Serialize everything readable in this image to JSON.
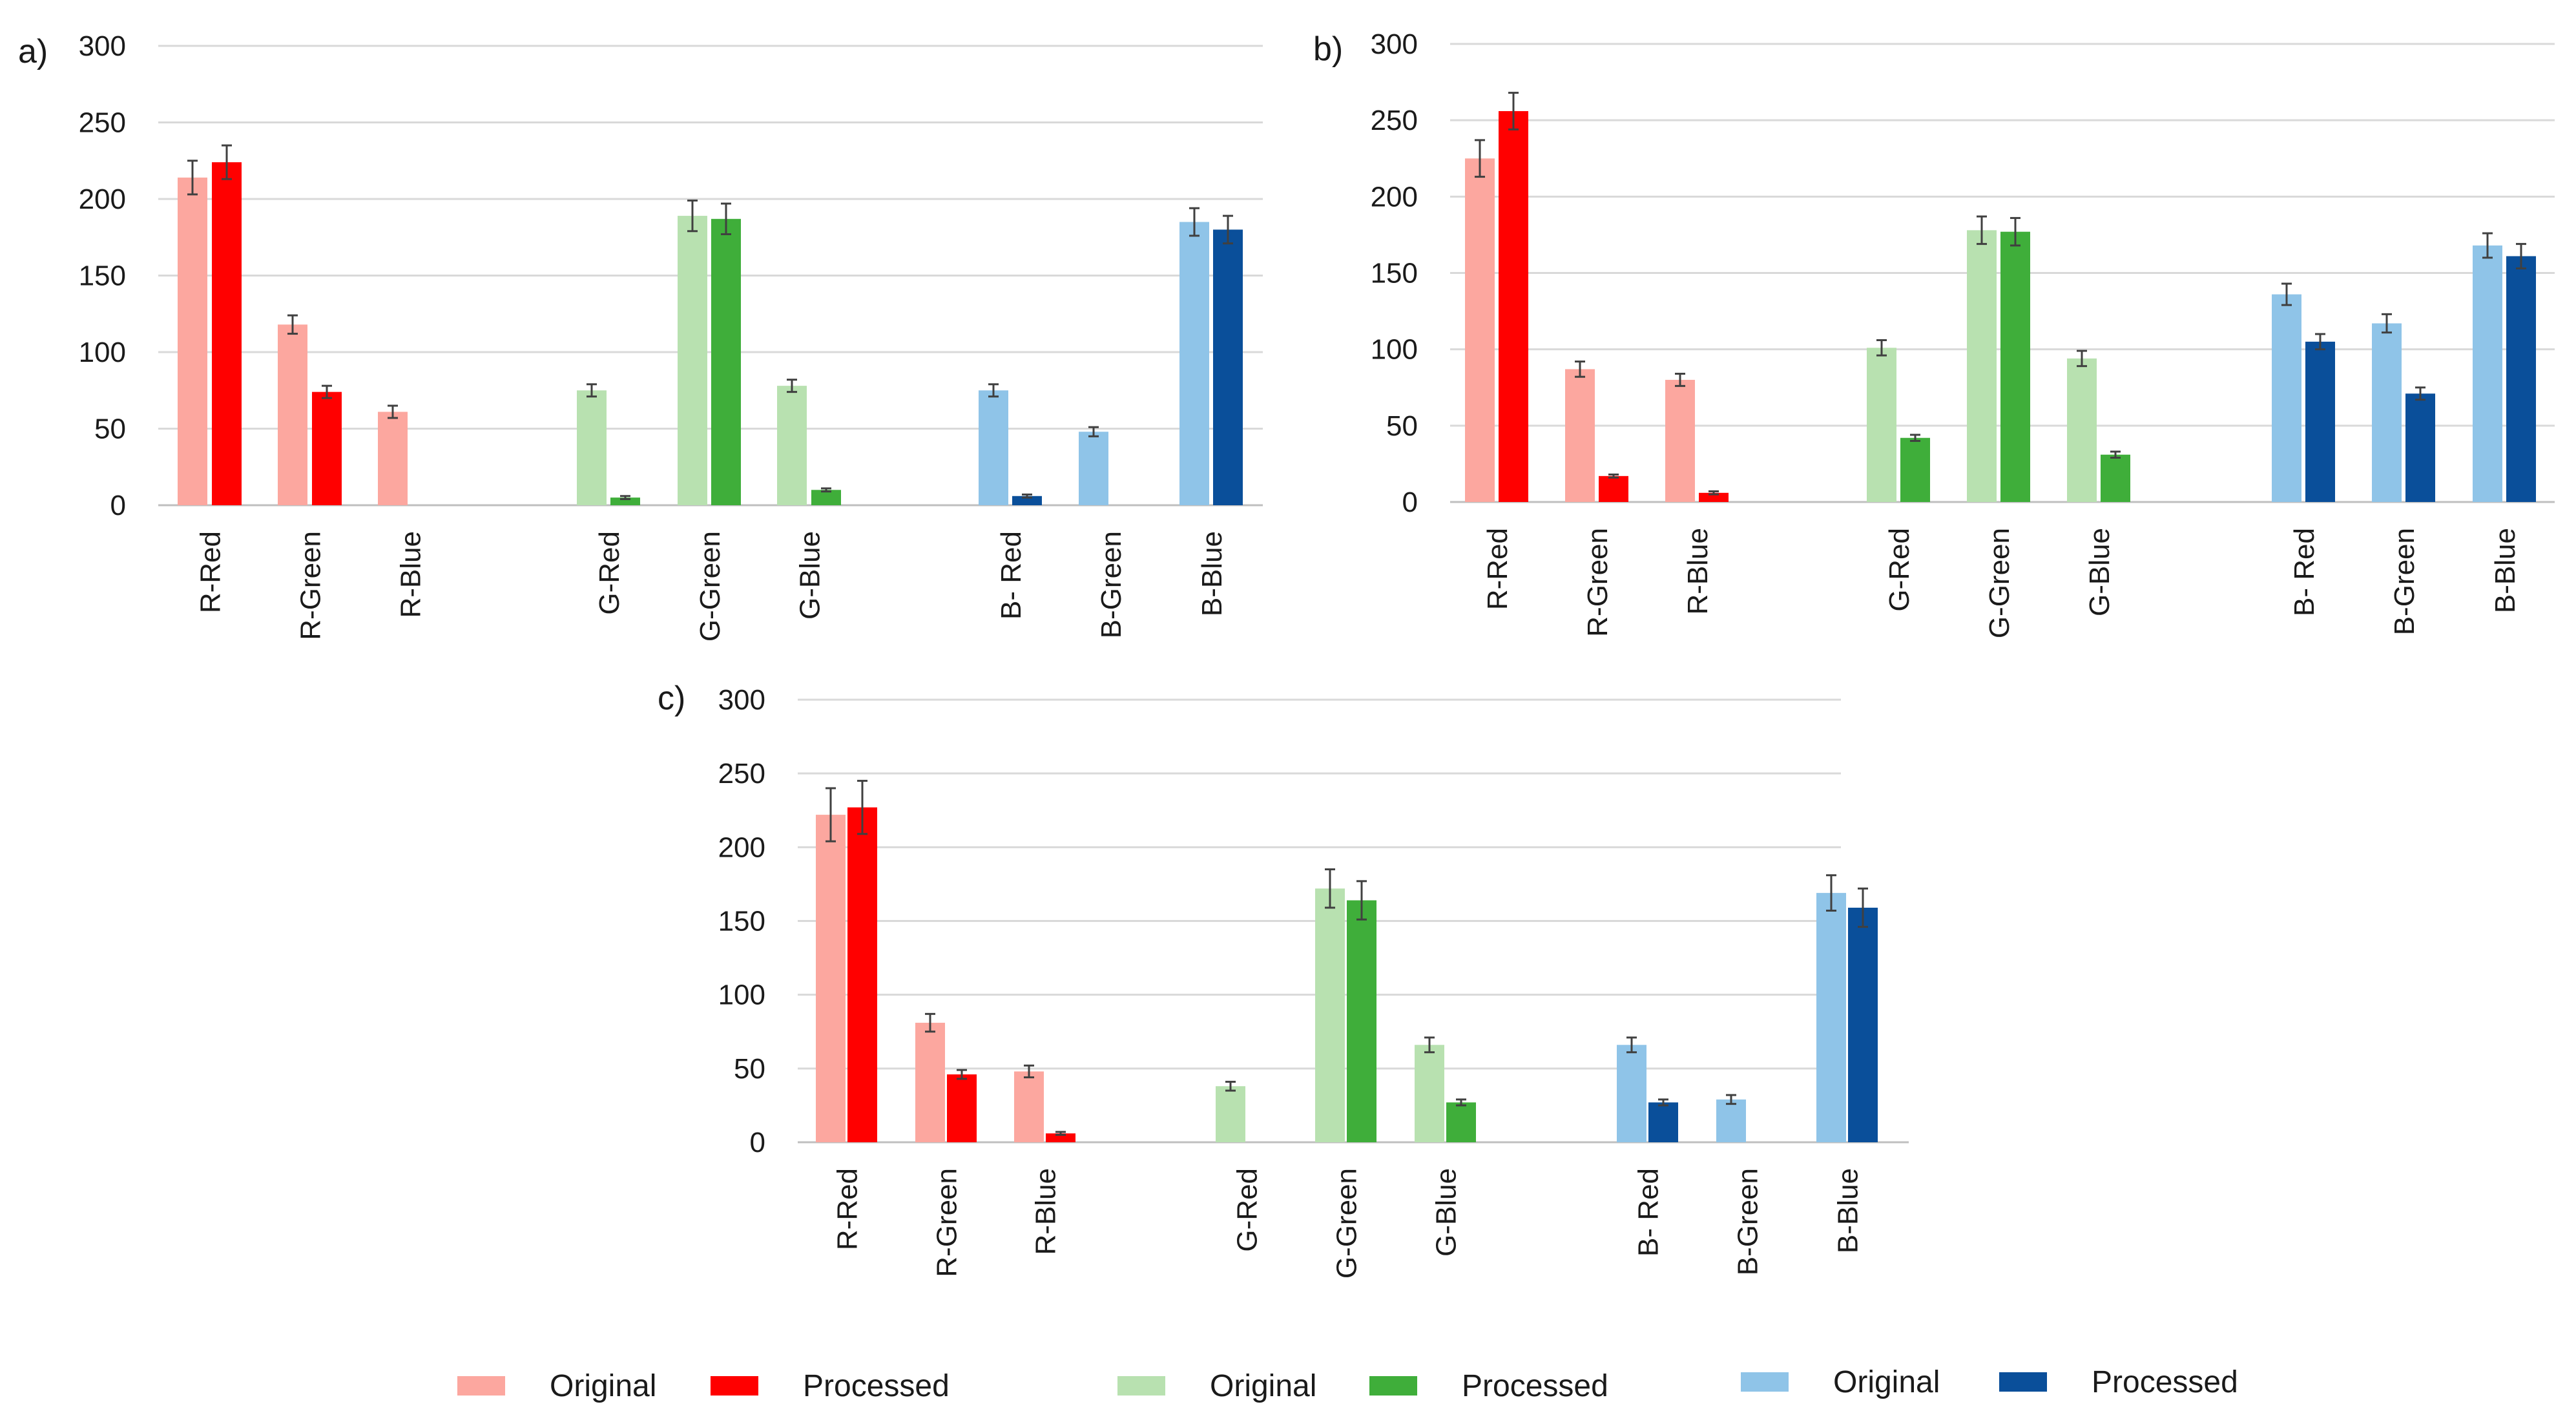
{
  "colors": {
    "red_original": "#fca79f",
    "red_processed": "#ff0000",
    "green_original": "#b8e1b0",
    "green_processed": "#3fae3a",
    "blue_original": "#8fc4e8",
    "blue_processed": "#0a4f9a",
    "error_bar": "#404040",
    "grid": "#d9d9d9"
  },
  "legend": [
    {
      "label": "Original",
      "color_key": "red_original"
    },
    {
      "label": "Processed",
      "color_key": "red_processed"
    },
    {
      "label": "Original",
      "color_key": "green_original"
    },
    {
      "label": "Processed",
      "color_key": "green_processed"
    },
    {
      "label": "Original",
      "color_key": "blue_original"
    },
    {
      "label": "Processed",
      "color_key": "blue_processed"
    }
  ],
  "chart_data": [
    {
      "panel": "a)",
      "type": "bar",
      "ylim": [
        0,
        300
      ],
      "yticks": [
        0,
        50,
        100,
        150,
        200,
        250,
        300
      ],
      "grid": true,
      "groups": [
        {
          "channel": "red",
          "categories": [
            "R-Red",
            "R-Green",
            "R-Blue"
          ],
          "original": [
            214,
            118,
            61
          ],
          "original_err": [
            11,
            6,
            4
          ],
          "processed": [
            224,
            74,
            0
          ],
          "processed_err": [
            11,
            4,
            0
          ]
        },
        {
          "channel": "green",
          "categories": [
            "G-Red",
            "G-Green",
            "G-Blue"
          ],
          "original": [
            75,
            189,
            78
          ],
          "original_err": [
            4,
            10,
            4
          ],
          "processed": [
            5,
            187,
            10
          ],
          "processed_err": [
            1,
            10,
            1
          ]
        },
        {
          "channel": "blue",
          "categories": [
            "B- Red",
            "B-Green",
            "B-Blue"
          ],
          "original": [
            75,
            48,
            185
          ],
          "original_err": [
            4,
            3,
            9
          ],
          "processed": [
            6,
            0,
            180
          ],
          "processed_err": [
            1,
            0,
            9
          ]
        }
      ]
    },
    {
      "panel": "b)",
      "type": "bar",
      "ylim": [
        0,
        300
      ],
      "yticks": [
        0,
        50,
        100,
        150,
        200,
        250,
        300
      ],
      "grid": true,
      "groups": [
        {
          "channel": "red",
          "categories": [
            "R-Red",
            "R-Green",
            "R-Blue"
          ],
          "original": [
            225,
            87,
            80
          ],
          "original_err": [
            12,
            5,
            4
          ],
          "processed": [
            256,
            17,
            6
          ],
          "processed_err": [
            12,
            1,
            1
          ]
        },
        {
          "channel": "green",
          "categories": [
            "G-Red",
            "G-Green",
            "G-Blue"
          ],
          "original": [
            101,
            178,
            94
          ],
          "original_err": [
            5,
            9,
            5
          ],
          "processed": [
            42,
            177,
            31
          ],
          "processed_err": [
            2,
            9,
            2
          ]
        },
        {
          "channel": "blue",
          "categories": [
            "B- Red",
            "B-Green",
            "B-Blue"
          ],
          "original": [
            136,
            117,
            168
          ],
          "original_err": [
            7,
            6,
            8
          ],
          "processed": [
            105,
            71,
            161
          ],
          "processed_err": [
            5,
            4,
            8
          ]
        }
      ]
    },
    {
      "panel": "c)",
      "type": "bar",
      "ylim": [
        0,
        300
      ],
      "yticks": [
        0,
        50,
        100,
        150,
        200,
        250,
        300
      ],
      "grid": true,
      "groups": [
        {
          "channel": "red",
          "categories": [
            "R-Red",
            "R-Green",
            "R-Blue"
          ],
          "original": [
            222,
            81,
            48
          ],
          "original_err": [
            18,
            6,
            4
          ],
          "processed": [
            227,
            46,
            6
          ],
          "processed_err": [
            18,
            3,
            1
          ]
        },
        {
          "channel": "green",
          "categories": [
            "G-Red",
            "G-Green",
            "G-Blue"
          ],
          "original": [
            38,
            172,
            66
          ],
          "original_err": [
            3,
            13,
            5
          ],
          "processed": [
            0,
            164,
            27
          ],
          "processed_err": [
            0,
            13,
            2
          ]
        },
        {
          "channel": "blue",
          "categories": [
            "B- Red",
            "B-Green",
            "B-Blue"
          ],
          "original": [
            66,
            29,
            169
          ],
          "original_err": [
            5,
            3,
            12
          ],
          "processed": [
            27,
            0,
            159
          ],
          "processed_err": [
            2,
            0,
            13
          ]
        }
      ]
    }
  ]
}
